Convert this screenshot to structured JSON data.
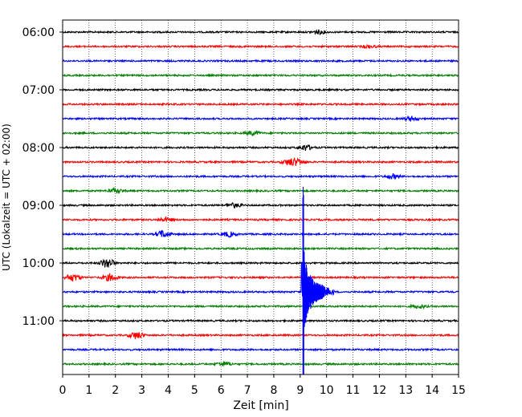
{
  "chart_data": {
    "type": "line",
    "subtype": "helicorder",
    "xlabel": "Zeit  [min]",
    "ylabel": "UTC (Lokalzeit = UTC + 02:00)",
    "xlim": [
      0,
      15
    ],
    "x_ticks": [
      "0",
      "1",
      "2",
      "3",
      "4",
      "5",
      "6",
      "7",
      "8",
      "9",
      "10",
      "11",
      "12",
      "13",
      "14",
      "15"
    ],
    "y_tick_labels": [
      "06:00",
      "07:00",
      "08:00",
      "09:00",
      "10:00",
      "11:00"
    ],
    "grid": "vertical dotted at each minute",
    "trace_interval_minutes": 15,
    "trace_start_times": [
      "06:00",
      "06:15",
      "06:30",
      "06:45",
      "07:00",
      "07:15",
      "07:30",
      "07:45",
      "08:00",
      "08:15",
      "08:30",
      "08:45",
      "09:00",
      "09:15",
      "09:30",
      "09:45",
      "10:00",
      "10:15",
      "10:30",
      "10:45",
      "11:00",
      "11:15",
      "11:30",
      "11:45"
    ],
    "trace_colors": [
      "#000000",
      "#ff0000",
      "#0000ff",
      "#008000"
    ],
    "events": [
      {
        "trace": 0,
        "minute": 9.7,
        "amplitude": 0.25
      },
      {
        "trace": 1,
        "minute": 11.6,
        "amplitude": 0.2
      },
      {
        "trace": 6,
        "minute": 13.2,
        "amplitude": 0.3
      },
      {
        "trace": 7,
        "minute": 7.2,
        "amplitude": 0.3
      },
      {
        "trace": 8,
        "minute": 9.2,
        "amplitude": 0.4
      },
      {
        "trace": 9,
        "minute": 8.6,
        "amplitude": 0.4
      },
      {
        "trace": 9,
        "minute": 8.9,
        "amplitude": 0.35
      },
      {
        "trace": 10,
        "minute": 12.5,
        "amplitude": 0.3
      },
      {
        "trace": 11,
        "minute": 2.0,
        "amplitude": 0.3
      },
      {
        "trace": 12,
        "minute": 6.5,
        "amplitude": 0.3
      },
      {
        "trace": 13,
        "minute": 3.9,
        "amplitude": 0.3
      },
      {
        "trace": 14,
        "minute": 3.8,
        "amplitude": 0.5
      },
      {
        "trace": 14,
        "minute": 6.3,
        "amplitude": 0.35
      },
      {
        "trace": 16,
        "minute": 1.7,
        "amplitude": 0.7
      },
      {
        "trace": 17,
        "minute": 0.4,
        "amplitude": 0.5
      },
      {
        "trace": 17,
        "minute": 1.8,
        "amplitude": 0.5
      },
      {
        "trace": 18,
        "minute": 9.1,
        "amplitude": 4.0
      },
      {
        "trace": 19,
        "minute": 13.5,
        "amplitude": 0.25
      },
      {
        "trace": 21,
        "minute": 2.8,
        "amplitude": 0.5
      },
      {
        "trace": 23,
        "minute": 6.1,
        "amplitude": 0.3
      }
    ]
  }
}
